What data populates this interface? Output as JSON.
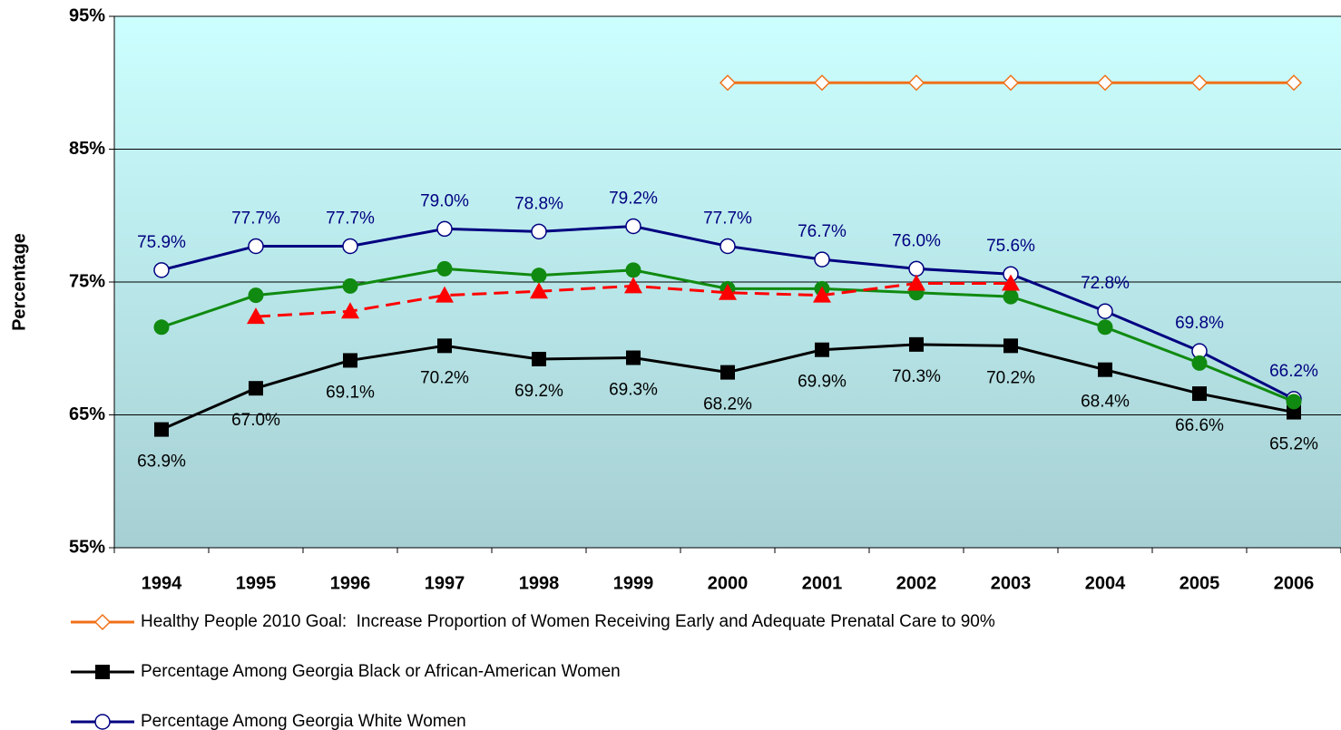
{
  "chart_data": {
    "type": "line",
    "ylabel": "Percentage",
    "categories": [
      "1994",
      "1995",
      "1996",
      "1997",
      "1998",
      "1999",
      "2000",
      "2001",
      "2002",
      "2003",
      "2004",
      "2005",
      "2006"
    ],
    "ylim": [
      55,
      95
    ],
    "yticks": [
      {
        "value": 55,
        "label": "55%"
      },
      {
        "value": 65,
        "label": "65%"
      },
      {
        "value": 75,
        "label": "75%"
      },
      {
        "value": 85,
        "label": "85%"
      },
      {
        "value": 95,
        "label": "95%"
      }
    ],
    "grid": true,
    "series": [
      {
        "name": "Healthy People 2010 Goal:  Increase Proportion of Women Receiving Early and Adequate Prenatal Care to 90%",
        "color": "#f07018",
        "marker": "diamond",
        "values": [
          null,
          null,
          null,
          null,
          null,
          null,
          90,
          90,
          90,
          90,
          90,
          90,
          90
        ]
      },
      {
        "name": "Percentage Among Georgia Black or African-American Women",
        "color": "#000000",
        "marker": "square",
        "label_position": "below",
        "values": [
          63.9,
          67.0,
          69.1,
          70.2,
          69.2,
          69.3,
          68.2,
          69.9,
          70.3,
          70.2,
          68.4,
          66.6,
          65.2
        ],
        "value_labels": [
          "63.9%",
          "67.0%",
          "69.1%",
          "70.2%",
          "69.2%",
          "69.3%",
          "68.2%",
          "69.9%",
          "70.3%",
          "70.2%",
          "68.4%",
          "66.6%",
          "65.2%"
        ]
      },
      {
        "name": "Percentage Among Georgia White Women",
        "color": "#000080",
        "marker": "circle",
        "label_position": "above",
        "values": [
          75.9,
          77.7,
          77.7,
          79.0,
          78.8,
          79.2,
          77.7,
          76.7,
          76.0,
          75.6,
          72.8,
          69.8,
          66.2
        ],
        "value_labels": [
          "75.9%",
          "77.7%",
          "77.7%",
          "79.0%",
          "78.8%",
          "79.2%",
          "77.7%",
          "76.7%",
          "76.0%",
          "75.6%",
          "72.8%",
          "69.8%",
          "66.2%"
        ]
      },
      {
        "color": "#108a10",
        "marker": "dot",
        "values": [
          71.6,
          74.0,
          74.7,
          76.0,
          75.5,
          75.9,
          74.5,
          74.5,
          74.2,
          73.9,
          71.6,
          68.9,
          66.0
        ]
      },
      {
        "color": "#ff0000",
        "marker": "triangle",
        "dashed": true,
        "values": [
          null,
          72.4,
          72.8,
          74.0,
          74.3,
          74.7,
          74.2,
          74.0,
          74.9,
          74.9,
          null,
          null,
          null
        ]
      }
    ]
  }
}
